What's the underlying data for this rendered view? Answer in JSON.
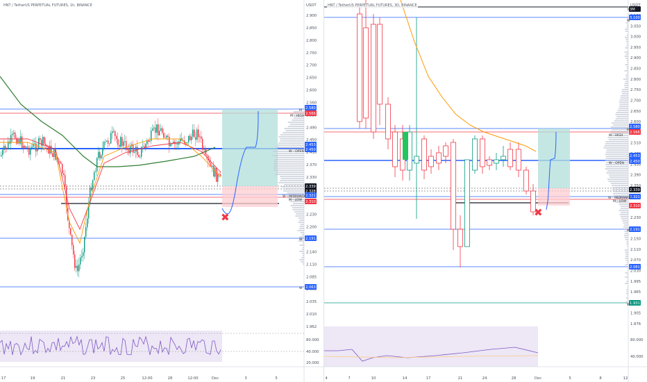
{
  "left_chart": {
    "title": "HNT / TetherUS PERPETUAL FUTURES, 1h, BINANCE",
    "price_axis_label": "USDT",
    "price_ticks": [
      "2.900",
      "2.850",
      "2.800",
      "2.750",
      "2.700",
      "2.650",
      "2.600",
      "2.560",
      "2.530",
      "2.490",
      "2.450",
      "2.410",
      "2.370",
      "2.330",
      "2.300",
      "2.260",
      "2.230",
      "2.200",
      "2.170",
      "2.140",
      "2.110",
      "2.085",
      "2.060",
      "2.035",
      "2.010",
      "1.962"
    ],
    "price_tags": [
      {
        "text": "2.580",
        "color": "#2962ff"
      },
      {
        "text": "2.566",
        "color": "#f23645"
      },
      {
        "text": "2.453",
        "color": "#2962ff"
      },
      {
        "text": "2.450",
        "color": "#2962ff"
      },
      {
        "text": "2.339",
        "color": "#131722"
      },
      {
        "text": "2.328",
        "color": "#131722"
      },
      {
        "text": "2.321",
        "color": "#2962ff"
      },
      {
        "text": "2.310",
        "color": "#f23645"
      },
      {
        "text": "2.191",
        "color": "#2962ff"
      },
      {
        "text": "2.063",
        "color": "#2962ff"
      }
    ],
    "level_labels": [
      "M - HIGH",
      "W - OPEN",
      "W - MIDRANGE",
      "M - LOW",
      "M",
      "W",
      "W"
    ],
    "time_labels": [
      "17",
      "19",
      "21",
      "23",
      "25",
      "12:00",
      "28",
      "12:00",
      "Dec",
      "3",
      "5"
    ],
    "rsi_ticks": []
  },
  "right_chart": {
    "title": "HNT / TetherUS PERPETUAL FUTURES, 3D, BINANCE",
    "price_axis_label": "USDT",
    "price_ticks": [
      "3.100",
      "3.050",
      "3.000",
      "2.950",
      "2.900",
      "2.850",
      "2.800",
      "2.750",
      "2.700",
      "2.650",
      "2.600",
      "2.550",
      "2.510",
      "2.470",
      "2.430",
      "2.390",
      "2.350",
      "2.310",
      "2.270",
      "2.230",
      "2.190",
      "2.150",
      "2.110",
      "2.070",
      "2.030",
      "1.995",
      "1.965",
      "1.935",
      "1.905",
      "1.876"
    ],
    "price_tags": [
      {
        "text": "3M",
        "color": "#131722"
      },
      {
        "text": "3.100",
        "color": "#2962ff"
      },
      {
        "text": "2.580",
        "color": "#2962ff"
      },
      {
        "text": "2.566",
        "color": "#f23645"
      },
      {
        "text": "2.453",
        "color": "#2962ff"
      },
      {
        "text": "2.450",
        "color": "#2962ff"
      },
      {
        "text": "2.339",
        "color": "#131722"
      },
      {
        "text": "2.321",
        "color": "#2962ff"
      },
      {
        "text": "2.310",
        "color": "#f23645"
      },
      {
        "text": "2.191",
        "color": "#2962ff"
      },
      {
        "text": "2.081",
        "color": "#2962ff"
      },
      {
        "text": "1.931",
        "color": "#089981"
      }
    ],
    "level_labels": [
      "M",
      "M - HIGH",
      "W - OPEN",
      "W - MIDRANGE",
      "M - LOW",
      "W",
      "W",
      "M",
      "W"
    ],
    "time_labels": [
      "4",
      "7",
      "10",
      "14",
      "17",
      "21",
      "24",
      "28",
      "Dec",
      "5",
      "8",
      "12"
    ],
    "rsi_ticks": [
      "80.000",
      "40.000"
    ]
  },
  "left_rsi_ticks": [
    "80.000",
    "40.000",
    "20.000"
  ],
  "colors": {
    "up": "#089981",
    "down": "#f23645",
    "level_blue": "#2962ff",
    "level_red": "#f23645",
    "ema_orange": "#ff9800",
    "ma_green": "#2e7d32",
    "target_fill": "#b2dfdb",
    "stop_fill": "#ffcdd2",
    "rsi_bg": "#ede7f6",
    "rsi_line": "#7e57c2"
  },
  "markers": {
    "cross_icon": "✖"
  }
}
